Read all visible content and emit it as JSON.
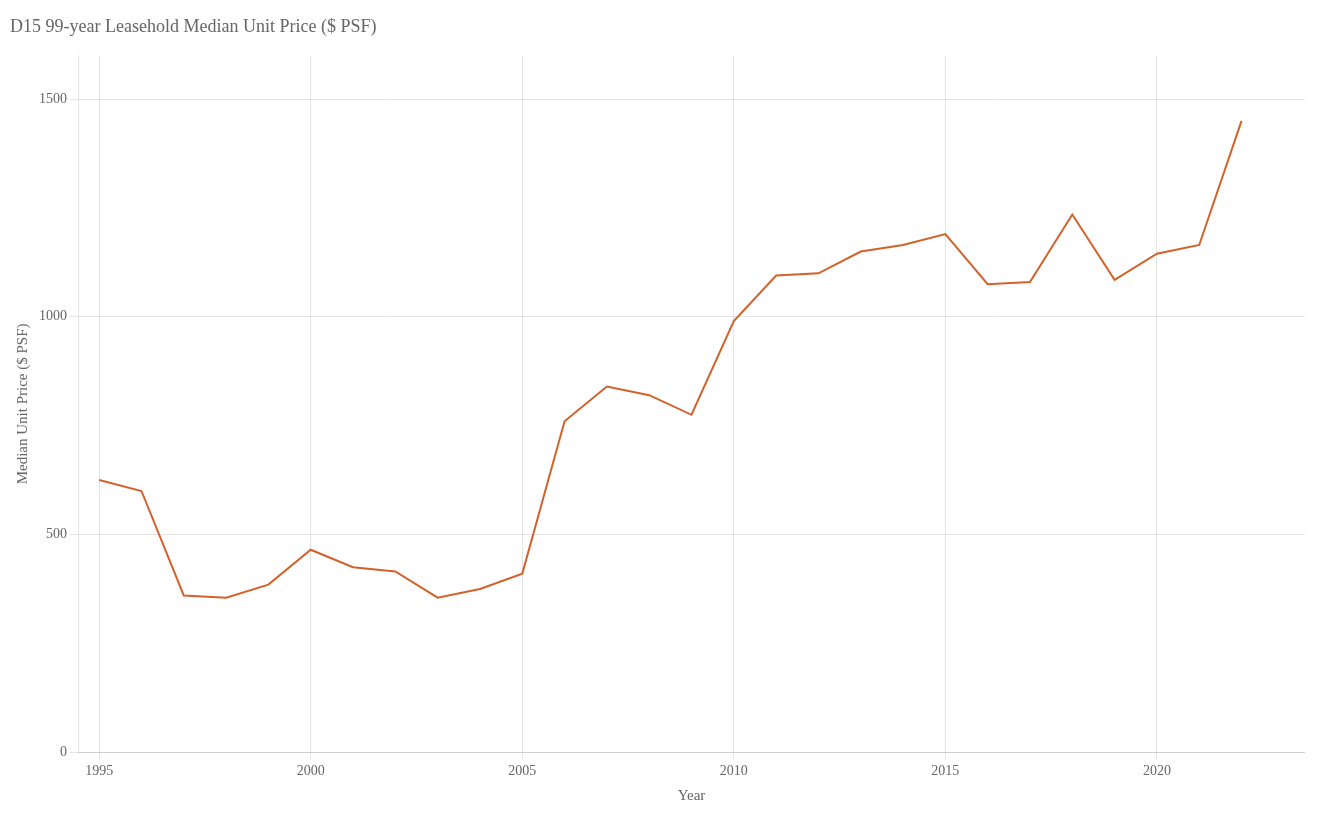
{
  "chart_data": {
    "type": "line",
    "title": "D15 99-year Leasehold Median Unit Price ($ PSF)",
    "xlabel": "Year",
    "ylabel": "Median Unit Price ($ PSF)",
    "x": [
      1995,
      1996,
      1997,
      1998,
      1999,
      2000,
      2001,
      2002,
      2003,
      2004,
      2005,
      2006,
      2007,
      2008,
      2009,
      2010,
      2011,
      2012,
      2013,
      2014,
      2015,
      2016,
      2017,
      2018,
      2019,
      2020,
      2021,
      2022
    ],
    "values": [
      625,
      600,
      360,
      355,
      385,
      465,
      425,
      415,
      355,
      375,
      410,
      760,
      840,
      820,
      775,
      990,
      1095,
      1100,
      1150,
      1165,
      1190,
      1075,
      1080,
      1235,
      1085,
      1145,
      1165,
      1450
    ],
    "color": "#d2622a",
    "xlim": [
      1994.5,
      2023.5
    ],
    "ylim": [
      0,
      1600
    ],
    "xticks": [
      1995,
      2000,
      2005,
      2010,
      2015,
      2020
    ],
    "yticks": [
      0,
      500,
      1000,
      1500
    ],
    "grid": true
  }
}
